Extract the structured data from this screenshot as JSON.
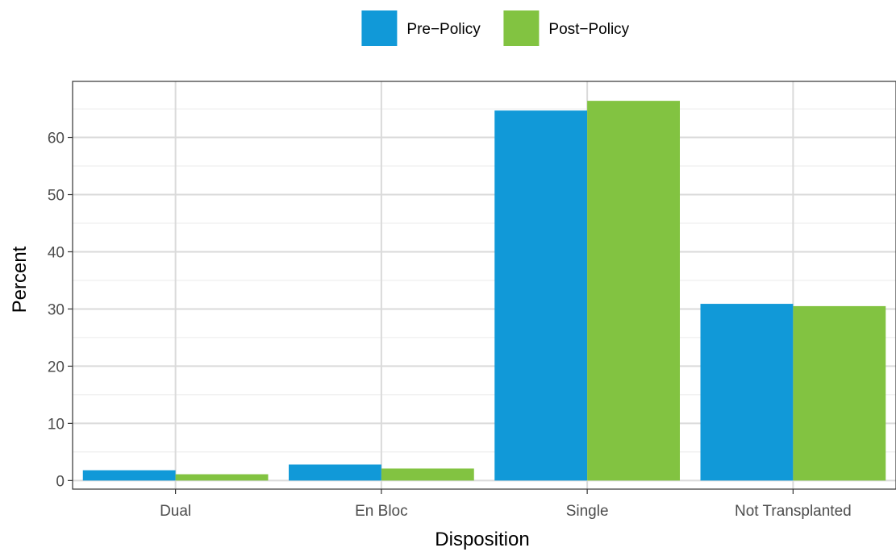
{
  "chart_data": {
    "type": "bar",
    "title": "",
    "xlabel": "Disposition",
    "ylabel": "Percent",
    "categories": [
      "Dual",
      "En Bloc",
      "Single",
      "Not Transplanted"
    ],
    "series": [
      {
        "name": "Pre−Policy",
        "color": "#1199D8",
        "values": [
          1.8,
          2.8,
          64.7,
          30.9
        ]
      },
      {
        "name": "Post−Policy",
        "color": "#82C341",
        "values": [
          1.1,
          2.1,
          66.4,
          30.5
        ]
      }
    ],
    "ylim": [
      -1.5,
      69.8
    ],
    "yticks": [
      0,
      10,
      20,
      30,
      40,
      50,
      60
    ],
    "ytick_labels": [
      "0",
      "10",
      "20",
      "30",
      "40",
      "50",
      "60"
    ],
    "grid": true,
    "legend_position": "top"
  }
}
